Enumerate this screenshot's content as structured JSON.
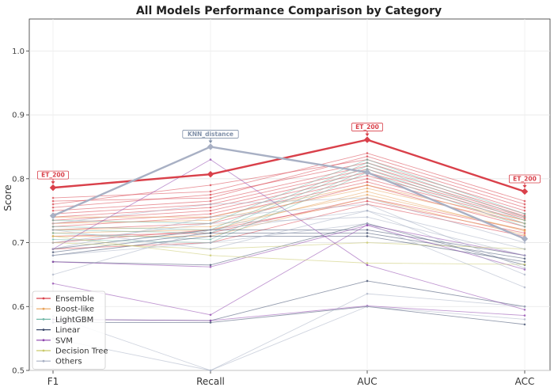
{
  "chart_data": {
    "type": "line",
    "title": "All Models Performance Comparison by Category",
    "xlabel": "",
    "ylabel": "Score",
    "categories": [
      "F1",
      "Recall",
      "AUC",
      "ACC"
    ],
    "ylim": [
      0.5,
      1.05
    ],
    "yticks": [
      "0.5",
      "0.6",
      "0.7",
      "0.8",
      "0.9",
      "1.0"
    ],
    "grid": true,
    "legend_position": "lower-left",
    "groups": [
      {
        "name": "Ensemble",
        "color": "#d9404a"
      },
      {
        "name": "Boost-like",
        "color": "#e8a35a"
      },
      {
        "name": "LightGBM",
        "color": "#72b8a8"
      },
      {
        "name": "Linear",
        "color": "#3d4a6b"
      },
      {
        "name": "SVM",
        "color": "#8e44ad"
      },
      {
        "name": "Decision Tree",
        "color": "#c9c96a"
      },
      {
        "name": "Others",
        "color": "#a8b0c4"
      }
    ],
    "series": [
      {
        "group": "Ensemble",
        "highlight": true,
        "values": [
          0.786,
          0.807,
          0.861,
          0.78
        ]
      },
      {
        "group": "Ensemble",
        "values": [
          0.77,
          0.78,
          0.84,
          0.765
        ]
      },
      {
        "group": "Ensemble",
        "values": [
          0.765,
          0.77,
          0.835,
          0.76
        ]
      },
      {
        "group": "Ensemble",
        "values": [
          0.76,
          0.79,
          0.83,
          0.755
        ]
      },
      {
        "group": "Ensemble",
        "values": [
          0.755,
          0.775,
          0.825,
          0.75
        ]
      },
      {
        "group": "Ensemble",
        "values": [
          0.75,
          0.765,
          0.82,
          0.745
        ]
      },
      {
        "group": "Ensemble",
        "values": [
          0.745,
          0.76,
          0.815,
          0.742
        ]
      },
      {
        "group": "Ensemble",
        "values": [
          0.74,
          0.755,
          0.81,
          0.74
        ]
      },
      {
        "group": "Ensemble",
        "values": [
          0.735,
          0.75,
          0.805,
          0.738
        ]
      },
      {
        "group": "Ensemble",
        "values": [
          0.73,
          0.745,
          0.8,
          0.735
        ]
      },
      {
        "group": "Ensemble",
        "values": [
          0.725,
          0.74,
          0.795,
          0.73
        ]
      },
      {
        "group": "Ensemble",
        "values": [
          0.72,
          0.73,
          0.79,
          0.725
        ]
      },
      {
        "group": "Ensemble",
        "values": [
          0.71,
          0.715,
          0.77,
          0.72
        ]
      },
      {
        "group": "Ensemble",
        "values": [
          0.7,
          0.72,
          0.765,
          0.715
        ]
      },
      {
        "group": "Ensemble",
        "values": [
          0.69,
          0.7,
          0.76,
          0.71
        ]
      },
      {
        "group": "Boost-like",
        "values": [
          0.74,
          0.74,
          0.79,
          0.735
        ]
      },
      {
        "group": "Boost-like",
        "values": [
          0.73,
          0.735,
          0.785,
          0.73
        ]
      },
      {
        "group": "Boost-like",
        "values": [
          0.72,
          0.725,
          0.775,
          0.72
        ]
      },
      {
        "group": "Boost-like",
        "values": [
          0.715,
          0.72,
          0.78,
          0.718
        ]
      },
      {
        "group": "Boost-like",
        "values": [
          0.71,
          0.71,
          0.77,
          0.712
        ]
      },
      {
        "group": "LightGBM",
        "values": [
          0.735,
          0.73,
          0.83,
          0.745
        ]
      },
      {
        "group": "LightGBM",
        "values": [
          0.725,
          0.72,
          0.825,
          0.74
        ]
      },
      {
        "group": "LightGBM",
        "values": [
          0.72,
          0.715,
          0.82,
          0.735
        ]
      },
      {
        "group": "LightGBM",
        "values": [
          0.715,
          0.705,
          0.815,
          0.73
        ]
      },
      {
        "group": "LightGBM",
        "values": [
          0.705,
          0.7,
          0.81,
          0.725
        ]
      },
      {
        "group": "Linear",
        "values": [
          0.69,
          0.72,
          0.72,
          0.68
        ]
      },
      {
        "group": "Linear",
        "values": [
          0.685,
          0.715,
          0.715,
          0.675
        ]
      },
      {
        "group": "Linear",
        "values": [
          0.68,
          0.71,
          0.71,
          0.67
        ]
      },
      {
        "group": "Linear",
        "values": [
          0.67,
          0.665,
          0.73,
          0.665
        ]
      },
      {
        "group": "Linear",
        "values": [
          0.58,
          0.578,
          0.64,
          0.6
        ]
      },
      {
        "group": "Linear",
        "values": [
          0.575,
          0.575,
          0.6,
          0.572
        ]
      },
      {
        "group": "SVM",
        "values": [
          0.69,
          0.83,
          0.665,
          0.595
        ]
      },
      {
        "group": "SVM",
        "values": [
          0.636,
          0.587,
          0.728,
          0.68
        ]
      },
      {
        "group": "SVM",
        "values": [
          0.67,
          0.662,
          0.727,
          0.658
        ]
      },
      {
        "group": "SVM",
        "values": [
          0.58,
          0.578,
          0.601,
          0.586
        ]
      },
      {
        "group": "Decision Tree",
        "values": [
          0.71,
          0.68,
          0.668,
          0.666
        ]
      },
      {
        "group": "Decision Tree",
        "values": [
          0.7,
          0.69,
          0.7,
          0.69
        ]
      },
      {
        "group": "Others",
        "highlight": true,
        "values": [
          0.742,
          0.85,
          0.81,
          0.706
        ]
      },
      {
        "group": "Others",
        "values": [
          0.73,
          0.76,
          0.77,
          0.7
        ]
      },
      {
        "group": "Others",
        "values": [
          0.72,
          0.69,
          0.75,
          0.69
        ]
      },
      {
        "group": "Others",
        "values": [
          0.7,
          0.73,
          0.74,
          0.68
        ]
      },
      {
        "group": "Others",
        "values": [
          0.68,
          0.7,
          0.73,
          0.63
        ]
      },
      {
        "group": "Others",
        "values": [
          0.69,
          0.74,
          0.76,
          0.66
        ]
      },
      {
        "group": "Others",
        "values": [
          0.65,
          0.72,
          0.75,
          0.65
        ]
      },
      {
        "group": "Others",
        "values": [
          0.585,
          0.5,
          0.62,
          0.6
        ]
      },
      {
        "group": "Others",
        "values": [
          0.55,
          0.5,
          0.6,
          0.58
        ]
      }
    ],
    "annotations": [
      {
        "label": "ET_200",
        "category": "F1",
        "value": 0.786,
        "color": "#d9404a"
      },
      {
        "label": "KNN_distance",
        "category": "Recall",
        "value": 0.85,
        "color": "#8090a8"
      },
      {
        "label": "ET_200",
        "category": "AUC",
        "value": 0.861,
        "color": "#d9404a"
      },
      {
        "label": "ET_200",
        "category": "ACC",
        "value": 0.78,
        "color": "#d9404a"
      }
    ]
  }
}
